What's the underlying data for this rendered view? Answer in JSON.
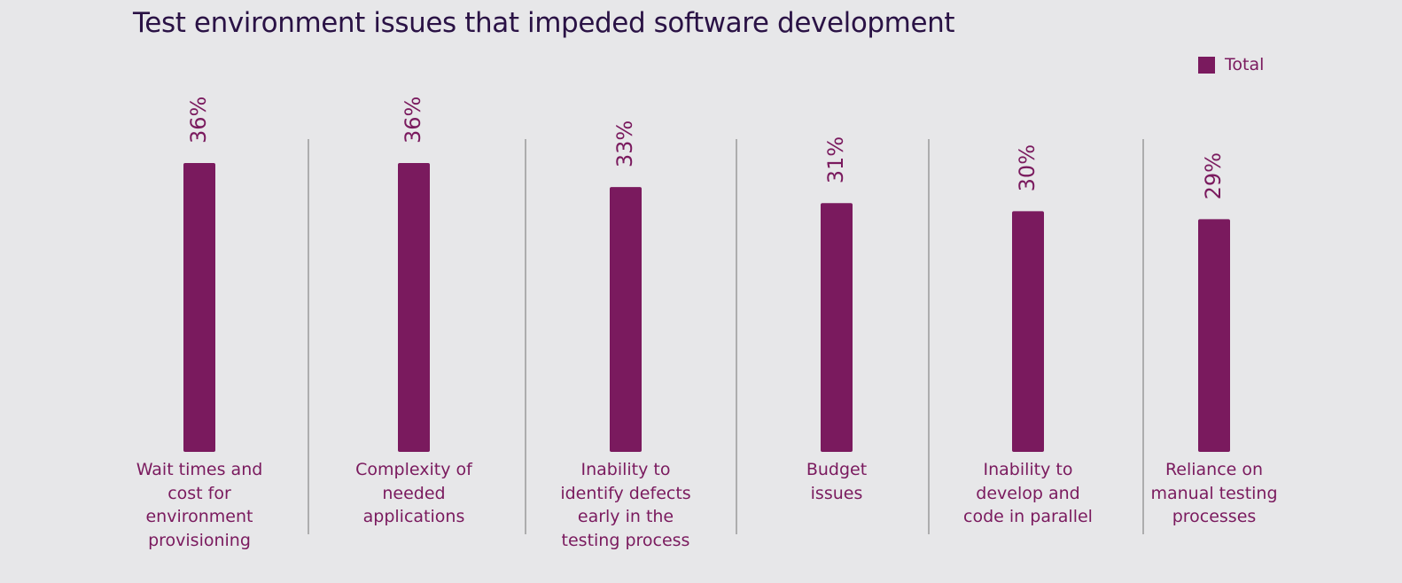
{
  "colors": {
    "bar": "#7a1a5e",
    "divider": "#9a9a9a",
    "title": "#2a1245"
  },
  "chart_data": {
    "type": "bar",
    "title": "Test environment issues that impeded software development",
    "legend": {
      "position": "top-right",
      "entries": [
        "Total"
      ]
    },
    "categories": [
      [
        "Wait times and",
        "cost for",
        "environment",
        "provisioning"
      ],
      [
        "Complexity of",
        "needed",
        "applications"
      ],
      [
        "Inability to",
        "identify defects",
        "early in the",
        "testing process"
      ],
      [
        "Budget",
        "issues"
      ],
      [
        "Inability to",
        "develop and",
        "code in parallel"
      ],
      [
        "Reliance on",
        "manual testing",
        "processes"
      ]
    ],
    "series": [
      {
        "name": "Total",
        "values": [
          36,
          36,
          33,
          31,
          30,
          29
        ]
      }
    ],
    "data_labels": [
      "36%",
      "36%",
      "33%",
      "31%",
      "30%",
      "29%"
    ],
    "unit": "%",
    "ylim": [
      0,
      36
    ],
    "grid": false
  }
}
